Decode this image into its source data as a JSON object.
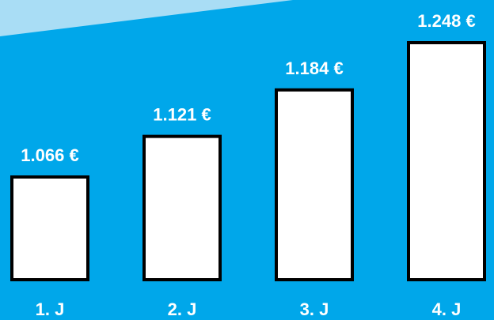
{
  "colors": {
    "background": "#00a7ea",
    "top_band": "#a9ddf5",
    "bar_fill": "#ffffff",
    "bar_stroke": "#000000",
    "text": "#ffffff"
  },
  "chart_data": {
    "type": "bar",
    "categories": [
      "1. J",
      "2. J",
      "3. J",
      "4. J"
    ],
    "values": [
      1066,
      1121,
      1184,
      1248
    ],
    "value_labels": [
      "1.066 €",
      "1.121 €",
      "1.184 €",
      "1.248 €"
    ],
    "title": "",
    "xlabel": "",
    "ylabel": "",
    "grid": false,
    "legend": "none"
  }
}
